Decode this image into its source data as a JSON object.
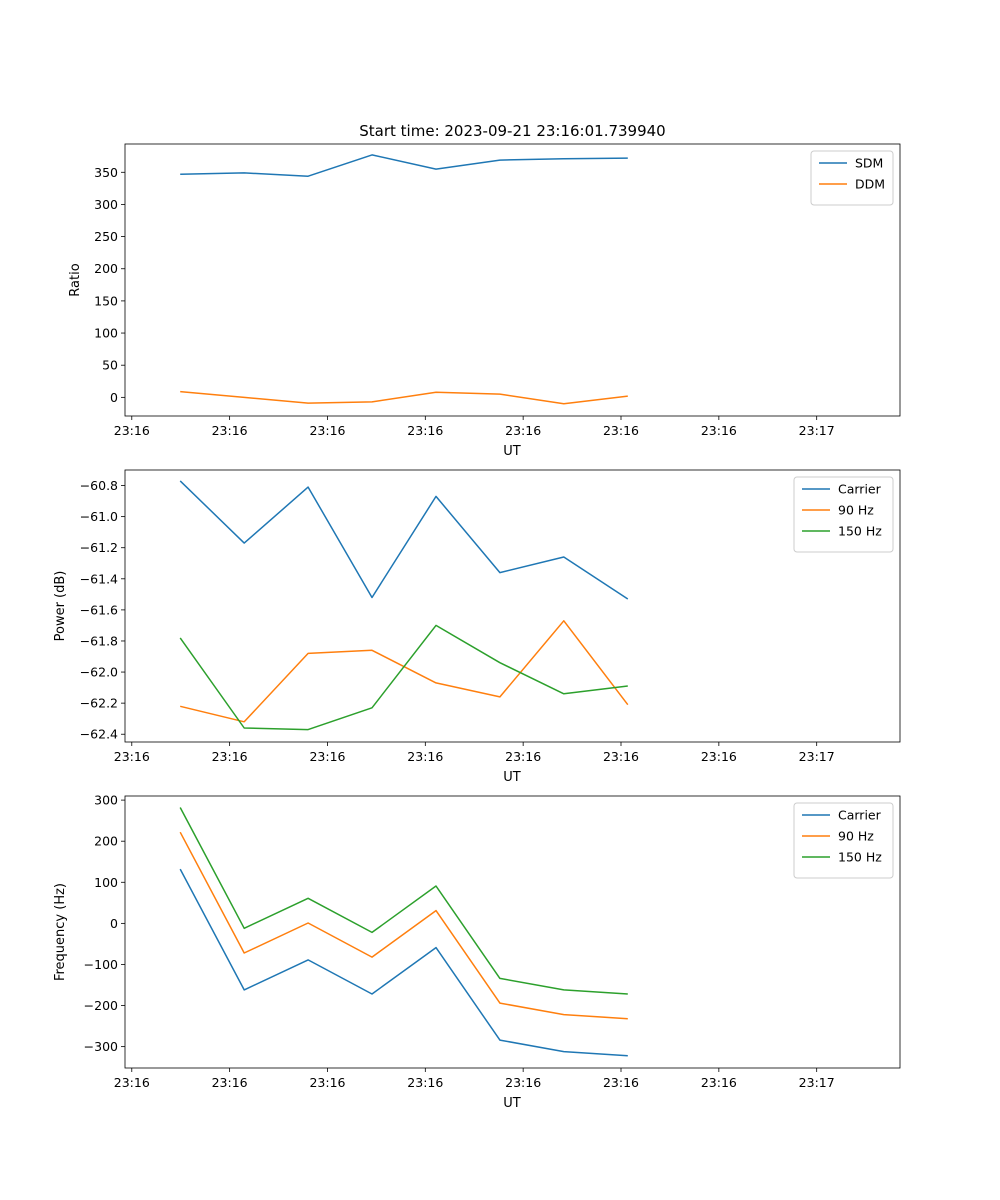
{
  "figure_title": "Start time: 2023-09-21 23:16:01.739940",
  "chart_data": [
    {
      "type": "line",
      "title": "Start time: 2023-09-21 23:16:01.739940",
      "xlabel": "UT",
      "ylabel": "Ratio",
      "xlim": [
        0,
        8
      ],
      "ylim": [
        -29,
        394
      ],
      "x_ticks": [
        0.07,
        1.08,
        2.09,
        3.1,
        4.11,
        5.12,
        6.13,
        7.14
      ],
      "x_tick_labels": [
        "23:16",
        "23:16",
        "23:16",
        "23:16",
        "23:16",
        "23:16",
        "23:16",
        "23:17"
      ],
      "y_ticks": [
        0,
        50,
        100,
        150,
        200,
        250,
        300,
        350
      ],
      "y_tick_labels": [
        "0",
        "50",
        "100",
        "150",
        "200",
        "250",
        "300",
        "350"
      ],
      "legend_position": "top-right",
      "x": [
        0.57,
        1.23,
        1.89,
        2.55,
        3.21,
        3.87,
        4.53,
        5.19
      ],
      "series": [
        {
          "name": "SDM",
          "color": "#1f77b4",
          "values": [
            347,
            349,
            344,
            377,
            355,
            369,
            371,
            372
          ]
        },
        {
          "name": "DDM",
          "color": "#ff7f0e",
          "values": [
            9,
            0,
            -9,
            -7,
            8,
            5,
            -10,
            2
          ]
        }
      ]
    },
    {
      "type": "line",
      "title": "",
      "xlabel": "UT",
      "ylabel": "Power (dB)",
      "xlim": [
        0,
        8
      ],
      "ylim": [
        -62.45,
        -60.7
      ],
      "x_ticks": [
        0.07,
        1.08,
        2.09,
        3.1,
        4.11,
        5.12,
        6.13,
        7.14
      ],
      "x_tick_labels": [
        "23:16",
        "23:16",
        "23:16",
        "23:16",
        "23:16",
        "23:16",
        "23:16",
        "23:17"
      ],
      "y_ticks": [
        -62.4,
        -62.2,
        -62.0,
        -61.8,
        -61.6,
        -61.4,
        -61.2,
        -61.0,
        -60.8
      ],
      "y_tick_labels": [
        "−62.4",
        "−62.2",
        "−62.0",
        "−61.8",
        "−61.6",
        "−61.4",
        "−61.2",
        "−61.0",
        "−60.8"
      ],
      "legend_position": "top-right",
      "x": [
        0.57,
        1.23,
        1.89,
        2.55,
        3.21,
        3.87,
        4.53,
        5.19
      ],
      "series": [
        {
          "name": "Carrier",
          "color": "#1f77b4",
          "values": [
            -60.77,
            -61.17,
            -60.81,
            -61.52,
            -60.87,
            -61.36,
            -61.26,
            -61.53
          ]
        },
        {
          "name": "90 Hz",
          "color": "#ff7f0e",
          "values": [
            -62.22,
            -62.32,
            -61.88,
            -61.86,
            -62.07,
            -62.16,
            -61.67,
            -62.21
          ]
        },
        {
          "name": "150 Hz",
          "color": "#2ca02c",
          "values": [
            -61.78,
            -62.36,
            -62.37,
            -62.23,
            -61.7,
            -61.94,
            -62.14,
            -62.09
          ]
        }
      ]
    },
    {
      "type": "line",
      "title": "",
      "xlabel": "UT",
      "ylabel": "Frequency (Hz)",
      "xlim": [
        0,
        8
      ],
      "ylim": [
        -352,
        310
      ],
      "x_ticks": [
        0.07,
        1.08,
        2.09,
        3.1,
        4.11,
        5.12,
        6.13,
        7.14
      ],
      "x_tick_labels": [
        "23:16",
        "23:16",
        "23:16",
        "23:16",
        "23:16",
        "23:16",
        "23:16",
        "23:17"
      ],
      "y_ticks": [
        -300,
        -200,
        -100,
        0,
        100,
        200,
        300
      ],
      "y_tick_labels": [
        "−300",
        "−200",
        "−100",
        "0",
        "100",
        "200",
        "300"
      ],
      "legend_position": "top-right",
      "x": [
        0.57,
        1.23,
        1.89,
        2.55,
        3.21,
        3.87,
        4.53,
        5.19
      ],
      "series": [
        {
          "name": "Carrier",
          "color": "#1f77b4",
          "values": [
            132,
            -162,
            -89,
            -172,
            -59,
            -284,
            -312,
            -322
          ]
        },
        {
          "name": "90 Hz",
          "color": "#ff7f0e",
          "values": [
            222,
            -72,
            1,
            -82,
            31,
            -194,
            -222,
            -232
          ]
        },
        {
          "name": "150 Hz",
          "color": "#2ca02c",
          "values": [
            282,
            -12,
            61,
            -22,
            91,
            -134,
            -162,
            -172
          ]
        }
      ]
    }
  ]
}
